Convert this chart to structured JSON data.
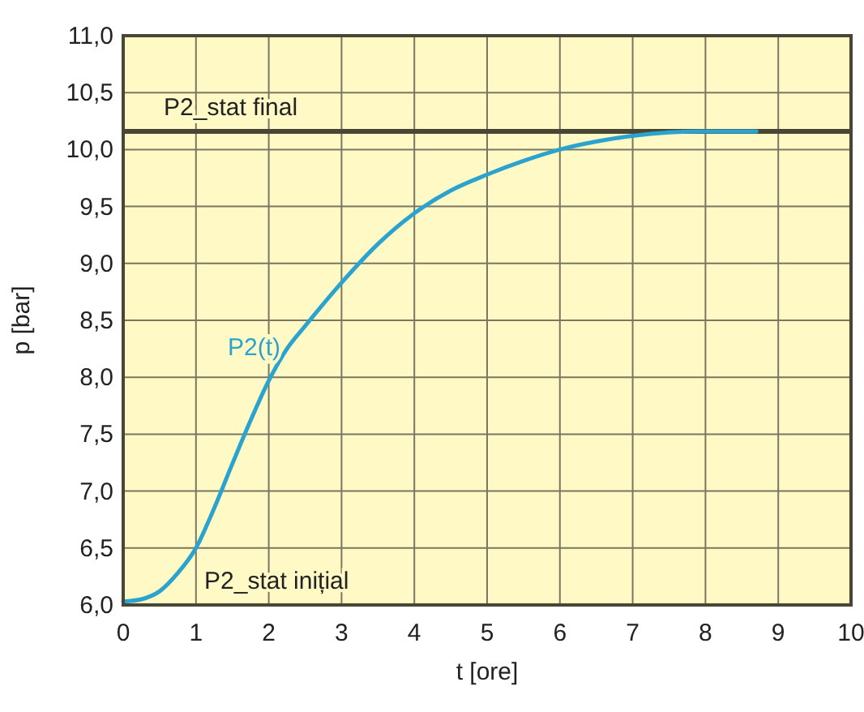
{
  "chart_data": {
    "type": "line",
    "xlabel": "t [ore]",
    "ylabel": "p [bar]",
    "x": [
      0,
      0.25,
      0.5,
      0.75,
      1,
      1.25,
      1.5,
      1.75,
      2,
      2.25,
      2.5,
      3,
      3.5,
      4,
      4.5,
      5,
      5.5,
      6,
      6.5,
      7,
      7.5,
      8,
      8.7
    ],
    "series": [
      {
        "name": "P2(t)",
        "color": "#2ba3cf",
        "values": [
          6.03,
          6.05,
          6.12,
          6.28,
          6.5,
          6.85,
          7.24,
          7.62,
          7.97,
          8.25,
          8.45,
          8.83,
          9.17,
          9.44,
          9.64,
          9.78,
          9.9,
          10.0,
          10.07,
          10.12,
          10.15,
          10.16,
          10.16
        ]
      }
    ],
    "xlim": [
      0,
      10
    ],
    "ylim": [
      6,
      11
    ],
    "xticks": [
      0,
      1,
      2,
      3,
      4,
      5,
      6,
      7,
      8,
      9,
      10
    ],
    "yticks": [
      {
        "value": 6,
        "label": "6,0"
      },
      {
        "value": 6.5,
        "label": "6,5"
      },
      {
        "value": 7,
        "label": "7,0"
      },
      {
        "value": 7.5,
        "label": "7,5"
      },
      {
        "value": 8,
        "label": "8,0"
      },
      {
        "value": 8.5,
        "label": "8,5"
      },
      {
        "value": 9,
        "label": "9,0"
      },
      {
        "value": 9.5,
        "label": "9,5"
      },
      {
        "value": 10,
        "label": "10,0"
      },
      {
        "value": 10.5,
        "label": "10,5"
      },
      {
        "value": 11,
        "label": "11,0"
      }
    ],
    "ref_lines": [
      {
        "axis": "y",
        "value": 10.16,
        "label": "P2_stat final",
        "color": "#4a4636"
      }
    ],
    "annotations": [
      "P2_stat inițial"
    ],
    "grid": true,
    "marker": "none",
    "line_style": "solid"
  }
}
